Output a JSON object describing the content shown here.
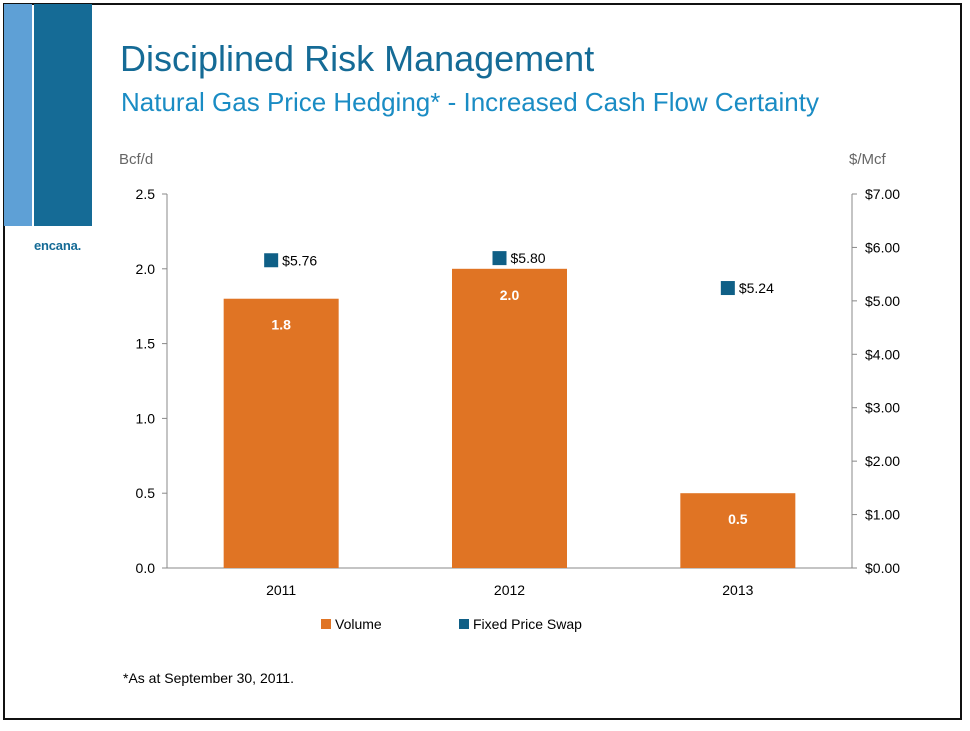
{
  "slide": {
    "title": "Disciplined Risk Management",
    "subtitle": "Natural Gas Price Hedging* - Increased Cash Flow Certainty",
    "logo_text": "encana.",
    "footnote": "*As at September 30, 2011.",
    "colors": {
      "brand_dark": "#156b96",
      "brand_light": "#5ea0d6",
      "subtitle": "#1a8cc4",
      "volume": "#e07424",
      "swap": "#0f5f86"
    }
  },
  "chart_data": {
    "type": "bar",
    "categories": [
      "2011",
      "2012",
      "2013"
    ],
    "left_axis": {
      "unit_label": "Bcf/d",
      "range": [
        0,
        2.5
      ],
      "ticks": [
        "0.0",
        "0.5",
        "1.0",
        "1.5",
        "2.0",
        "2.5"
      ]
    },
    "right_axis": {
      "unit_label": "$/Mcf",
      "range": [
        0,
        7
      ],
      "ticks": [
        "$0.00",
        "$1.00",
        "$2.00",
        "$3.00",
        "$4.00",
        "$5.00",
        "$6.00",
        "$7.00"
      ]
    },
    "series": [
      {
        "name": "Volume",
        "kind": "bar",
        "axis": "left",
        "color": "#e07424",
        "values": [
          1.8,
          2.0,
          0.5
        ],
        "labels": [
          "1.8",
          "2.0",
          "0.5"
        ]
      },
      {
        "name": "Fixed Price Swap",
        "kind": "marker",
        "axis": "right",
        "color": "#0f5f86",
        "values": [
          5.76,
          5.8,
          5.24
        ],
        "labels": [
          "$5.76",
          "$5.80",
          "$5.24"
        ]
      }
    ],
    "legend_position": "bottom-center",
    "grid": false
  }
}
